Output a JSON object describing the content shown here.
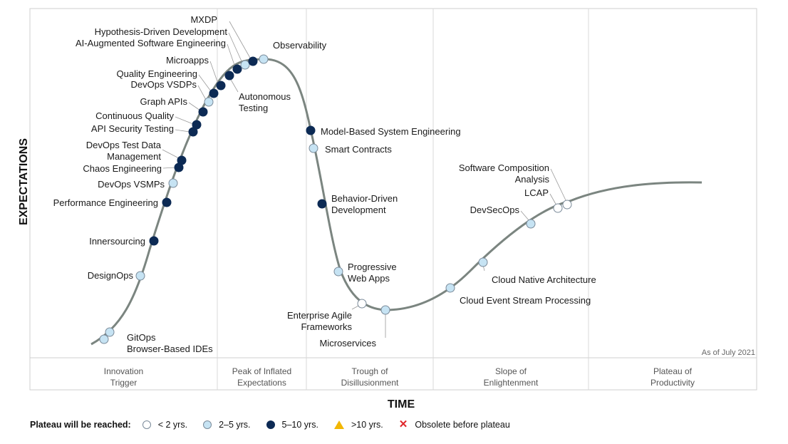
{
  "chart_data": {
    "type": "scatter",
    "xlabel": "TIME",
    "ylabel": "EXPECTATIONS",
    "as_of": "As of July 2021",
    "phases": [
      "Innovation\nTrigger",
      "Peak of Inflated\nExpectations",
      "Trough of\nDisillusionment",
      "Slope of\nEnlightenment",
      "Plateau of\nProductivity"
    ],
    "legend": {
      "title": "Plateau will be reached:",
      "items": [
        {
          "key": "lt2",
          "label": "< 2 yrs.",
          "color": "#ffffff",
          "shape": "circle"
        },
        {
          "key": "2to5",
          "label": "2–5 yrs.",
          "color": "#c6e3f3",
          "shape": "circle"
        },
        {
          "key": "5to10",
          "label": "5–10 yrs.",
          "color": "#0c2a54",
          "shape": "circle"
        },
        {
          "key": "gt10",
          "label": ">10 yrs.",
          "color": "#f2b705",
          "shape": "triangle"
        },
        {
          "key": "obsolete",
          "label": "Obsolete before plateau",
          "color": "#e0262b",
          "shape": "cross"
        }
      ]
    },
    "points": [
      {
        "name": "GitOps",
        "cat": "2to5"
      },
      {
        "name": "Browser-Based IDEs",
        "cat": "2to5"
      },
      {
        "name": "DesignOps",
        "cat": "2to5"
      },
      {
        "name": "Innersourcing",
        "cat": "5to10"
      },
      {
        "name": "Performance Engineering",
        "cat": "5to10"
      },
      {
        "name": "DevOps VSMPs",
        "cat": "2to5"
      },
      {
        "name": "Chaos Engineering",
        "cat": "5to10"
      },
      {
        "name": "DevOps Test Data\nManagement",
        "cat": "5to10"
      },
      {
        "name": "API Security Testing",
        "cat": "5to10"
      },
      {
        "name": "Continuous Quality",
        "cat": "5to10"
      },
      {
        "name": "Graph APIs",
        "cat": "5to10"
      },
      {
        "name": "DevOps VSDPs",
        "cat": "2to5"
      },
      {
        "name": "Quality Engineering",
        "cat": "5to10"
      },
      {
        "name": "Microapps",
        "cat": "5to10"
      },
      {
        "name": "Autonomous\nTesting",
        "cat": "5to10"
      },
      {
        "name": "AI-Augmented Software Engineering",
        "cat": "5to10"
      },
      {
        "name": "Hypothesis-Driven Development",
        "cat": "2to5"
      },
      {
        "name": "MXDP",
        "cat": "5to10"
      },
      {
        "name": "Observability",
        "cat": "2to5"
      },
      {
        "name": "Model-Based System Engineering",
        "cat": "5to10"
      },
      {
        "name": "Smart Contracts",
        "cat": "2to5"
      },
      {
        "name": "Behavior-Driven\nDevelopment",
        "cat": "5to10"
      },
      {
        "name": "Progressive\nWeb Apps",
        "cat": "2to5"
      },
      {
        "name": "Enterprise Agile\nFrameworks",
        "cat": "lt2"
      },
      {
        "name": "Microservices",
        "cat": "2to5"
      },
      {
        "name": "Cloud Event Stream Processing",
        "cat": "2to5"
      },
      {
        "name": "Cloud Native Architecture",
        "cat": "2to5"
      },
      {
        "name": "DevSecOps",
        "cat": "2to5"
      },
      {
        "name": "LCAP",
        "cat": "lt2"
      },
      {
        "name": "Software Composition\nAnalysis",
        "cat": "lt2"
      }
    ]
  }
}
